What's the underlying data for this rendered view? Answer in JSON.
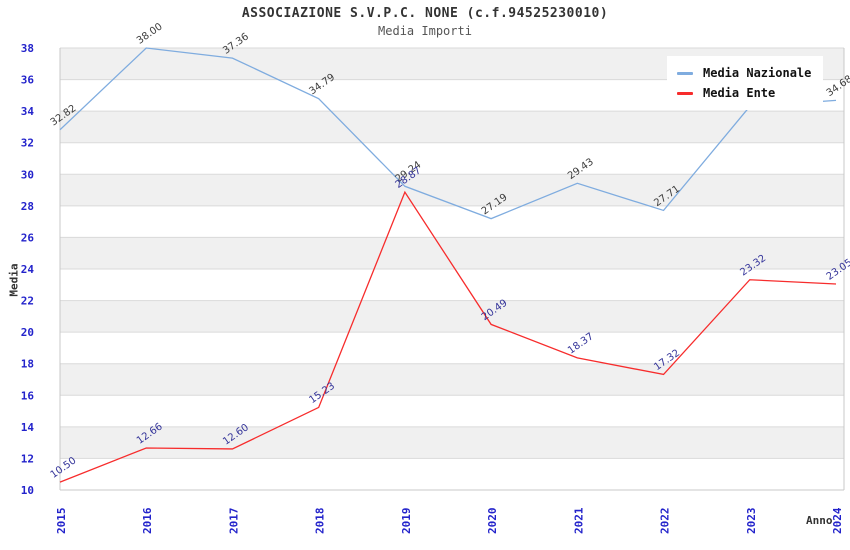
{
  "header": {
    "title": "ASSOCIAZIONE S.V.P.C. NONE (c.f.94525230010)",
    "subtitle": "Media Importi"
  },
  "chart_data": {
    "type": "line",
    "title": "ASSOCIAZIONE S.V.P.C. NONE (c.f.94525230010)",
    "subtitle": "Media Importi",
    "xlabel": "Anno",
    "ylabel": "Media",
    "x": [
      2015,
      2016,
      2017,
      2018,
      2019,
      2020,
      2021,
      2022,
      2023,
      2024
    ],
    "ylim": [
      10,
      38
    ],
    "ytick_step": 2,
    "grid": "horizontal gridlines with alternating light-gray bands every 2 units",
    "legend_position": "top-right",
    "series": [
      {
        "name": "Media Nazionale",
        "color": "#7FACDF",
        "label_color": "#3C3C3C",
        "values": [
          32.82,
          38.0,
          37.36,
          34.79,
          29.24,
          27.19,
          29.43,
          27.71,
          34.3,
          34.68
        ],
        "labels": [
          "32.82",
          "38.00",
          "37.36",
          "34.79",
          "29.24",
          "27.19",
          "29.43",
          "27.71",
          "",
          "34.68"
        ],
        "note_2023": "label hidden behind legend box"
      },
      {
        "name": "Media Ente",
        "color": "#F72C2C",
        "label_color": "#333399",
        "values": [
          10.5,
          12.66,
          12.6,
          15.23,
          28.87,
          20.49,
          18.37,
          17.32,
          23.32,
          23.05
        ],
        "labels": [
          "10.50",
          "12.66",
          "12.60",
          "15.23",
          "28.87",
          "20.49",
          "18.37",
          "17.32",
          "23.32",
          "23.05"
        ]
      }
    ],
    "colors": {
      "axis_tick": "#2323CB",
      "band": "#F0F0F0",
      "grid": "#DADADA",
      "border": "#C8C8C8",
      "background": "#FFFFFF"
    }
  }
}
